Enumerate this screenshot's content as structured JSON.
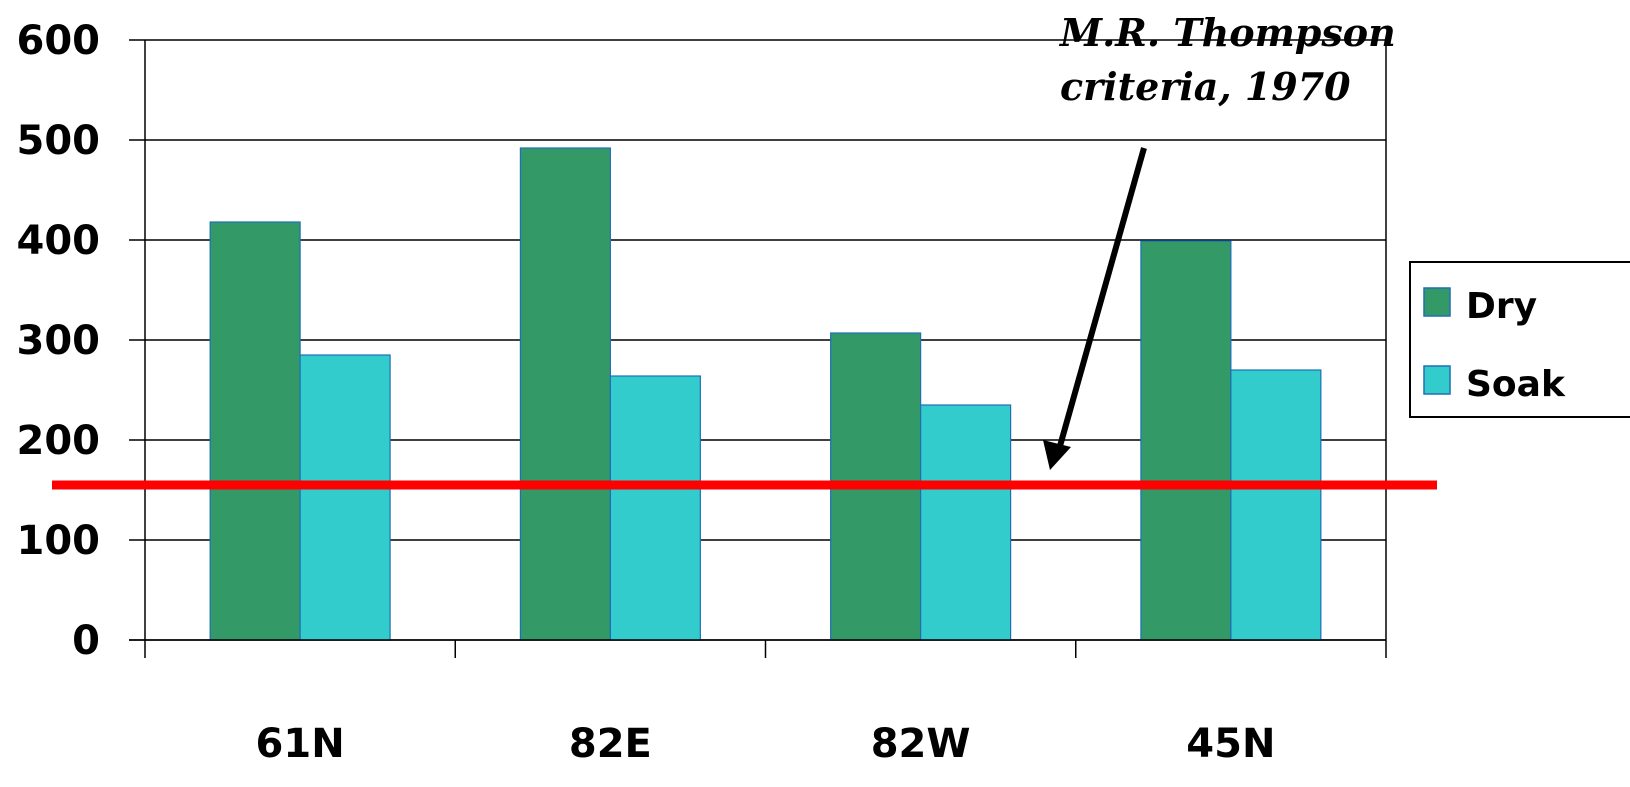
{
  "chart_data": {
    "type": "bar",
    "categories": [
      "61N",
      "82E",
      "82W",
      "45N"
    ],
    "series": [
      {
        "name": "Dry",
        "values": [
          418,
          492,
          307,
          399
        ],
        "color": "#339966"
      },
      {
        "name": "Soak",
        "values": [
          285,
          264,
          235,
          270
        ],
        "color": "#33CCCC"
      }
    ],
    "yticks": [
      "0",
      "100",
      "200",
      "300",
      "400",
      "500",
      "600"
    ],
    "ylim": [
      0,
      600
    ],
    "grid": true,
    "legend_position": "right",
    "reference_line": {
      "value": 155,
      "color": "#FF0000"
    },
    "annotation": {
      "line1": "M.R. Thompson",
      "line2": "criteria, 1970"
    }
  }
}
